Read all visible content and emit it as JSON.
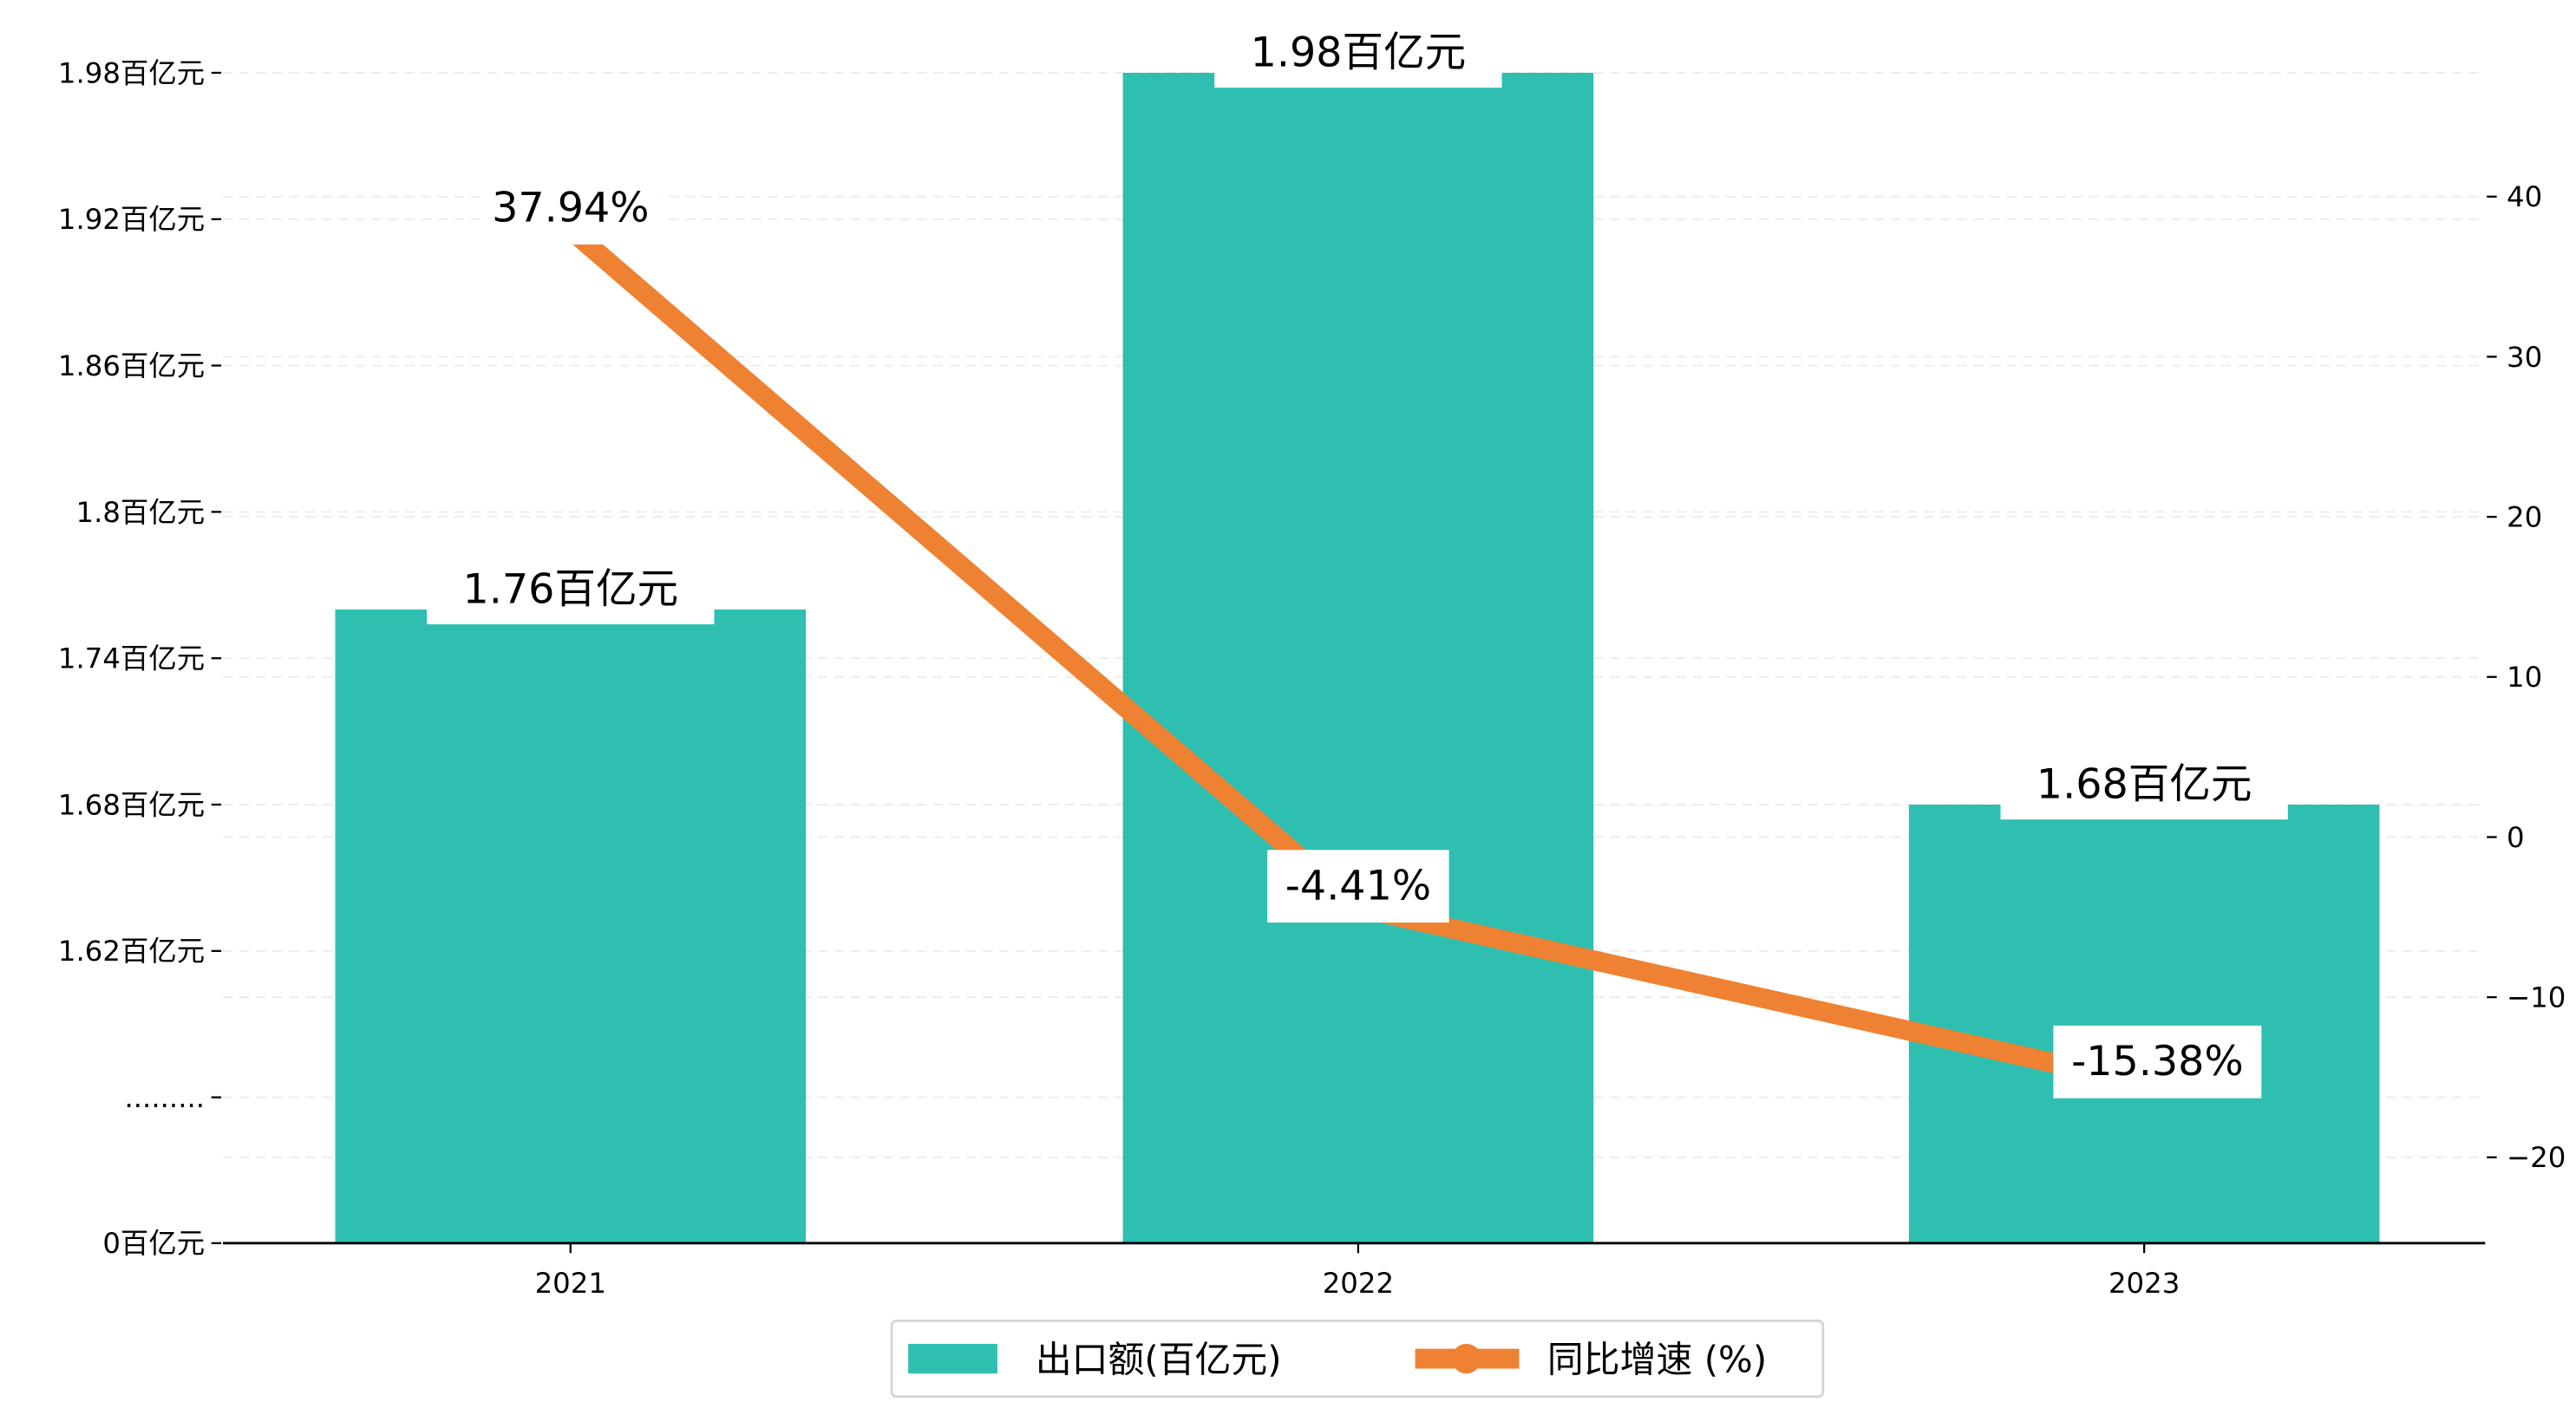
{
  "chart_data": {
    "type": "bar+line",
    "categories": [
      "2021",
      "2022",
      "2023"
    ],
    "series": [
      {
        "name": "出口额(百亿元)",
        "type": "bar",
        "axis": "left",
        "values": [
          1.76,
          1.98,
          1.68
        ],
        "labels": [
          "1.76百亿元",
          "1.98百亿元",
          "1.68百亿元"
        ],
        "color": "#2ebfb1"
      },
      {
        "name": "同比增速 (%)",
        "type": "line",
        "axis": "right",
        "values": [
          37.94,
          -4.41,
          -15.38
        ],
        "labels": [
          "37.94%",
          "-4.41%",
          "-15.38%"
        ],
        "color": "#ee8232"
      }
    ],
    "left_axis": {
      "broken": true,
      "ticks": [
        {
          "value": 1.98,
          "label": "1.98百亿元"
        },
        {
          "value": 1.92,
          "label": "1.92百亿元"
        },
        {
          "value": 1.86,
          "label": "1.86百亿元"
        },
        {
          "value": 1.8,
          "label": "1.8百亿元"
        },
        {
          "value": 1.74,
          "label": "1.74百亿元"
        },
        {
          "value": 1.68,
          "label": "1.68百亿元"
        },
        {
          "value": 1.62,
          "label": "1.62百亿元"
        },
        {
          "value": 1.56,
          "label": "........."
        },
        {
          "value": 0,
          "label": "0百亿元"
        }
      ]
    },
    "right_axis": {
      "ylim": [
        -25.5,
        47
      ],
      "ticks": [
        {
          "value": 40,
          "label": "40"
        },
        {
          "value": 30,
          "label": "30"
        },
        {
          "value": 20,
          "label": "20"
        },
        {
          "value": 10,
          "label": "10"
        },
        {
          "value": 0,
          "label": "0"
        },
        {
          "value": -10,
          "label": "−10"
        },
        {
          "value": -20,
          "label": "−20"
        }
      ]
    },
    "grid": true,
    "legend": {
      "placement": "bottom-center",
      "entries": [
        "出口额(百亿元)",
        "同比增速 (%)"
      ]
    }
  }
}
